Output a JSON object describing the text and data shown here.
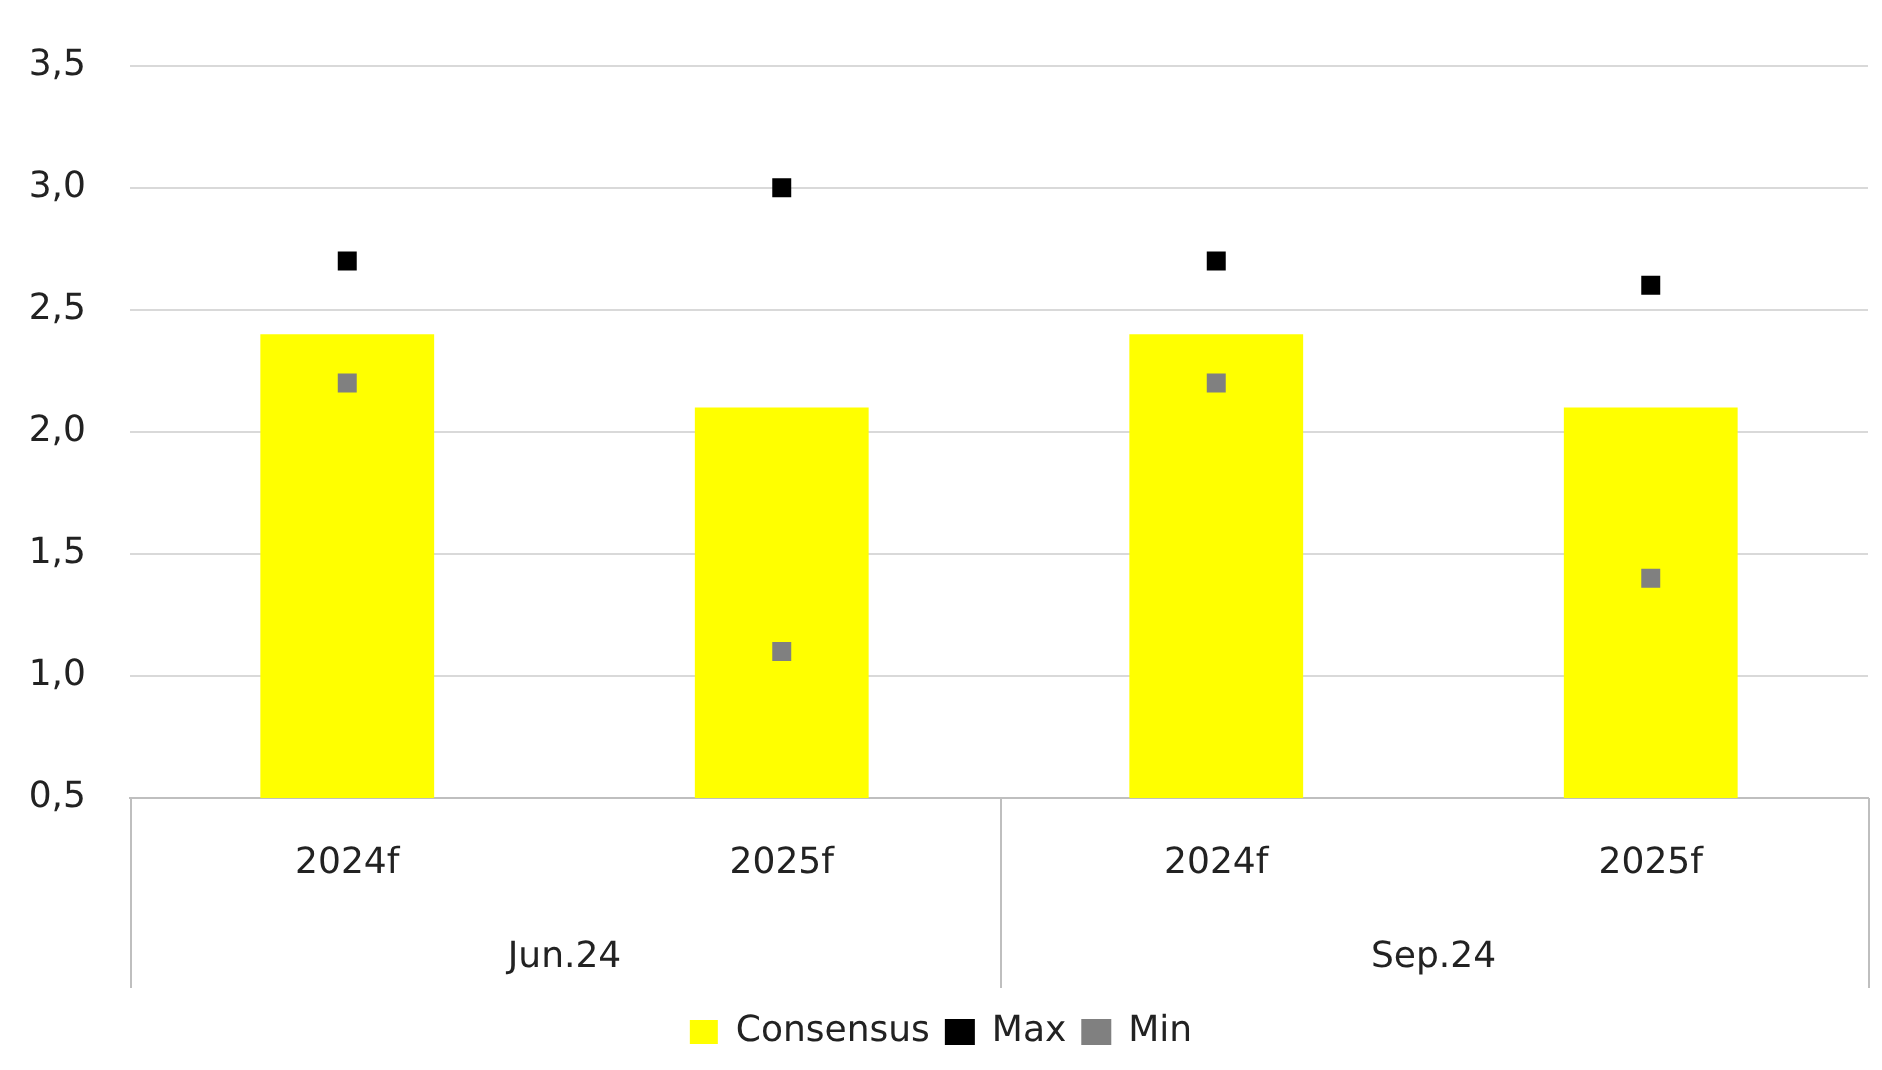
{
  "chart_data": {
    "type": "bar",
    "categories": [
      "2024f",
      "2025f",
      "2024f",
      "2025f"
    ],
    "series": [
      {
        "name": "Consensus",
        "color": "#ffff00",
        "values": [
          2.4,
          2.1,
          2.4,
          2.1
        ]
      },
      {
        "name": "Max",
        "type": "scatter",
        "marker": "square",
        "color": "#000000",
        "values": [
          2.7,
          3.0,
          2.7,
          2.6
        ]
      },
      {
        "name": "Min",
        "type": "scatter",
        "marker": "square",
        "color": "#808080",
        "values": [
          2.2,
          1.1,
          2.2,
          1.4
        ]
      }
    ],
    "ylim": [
      0.5,
      3.5
    ],
    "yticks": [
      {
        "value": 0.5,
        "label": "0,5"
      },
      {
        "value": 1.0,
        "label": "1,0"
      },
      {
        "value": 1.5,
        "label": "1,5"
      },
      {
        "value": 2.0,
        "label": "2,0"
      },
      {
        "value": 2.5,
        "label": "2,5"
      },
      {
        "value": 3.0,
        "label": "3,0"
      },
      {
        "value": 3.5,
        "label": "3,5"
      }
    ],
    "annotations": [
      "Jun.24",
      "Sep.24"
    ],
    "grid": "y",
    "legend": "bottom"
  }
}
